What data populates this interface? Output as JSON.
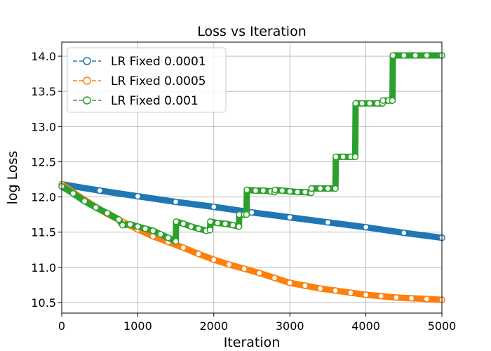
{
  "chart_data": {
    "type": "line",
    "title": "Loss vs Iteration",
    "xlabel": "Iteration",
    "ylabel": "log Loss",
    "xlim": [
      0,
      5000
    ],
    "ylim": [
      10.35,
      14.2
    ],
    "xticks": [
      0,
      1000,
      2000,
      3000,
      4000,
      5000
    ],
    "yticks": [
      10.5,
      11.0,
      11.5,
      12.0,
      12.5,
      13.0,
      13.5,
      14.0
    ],
    "xtick_labels": [
      "0",
      "1000",
      "2000",
      "3000",
      "4000",
      "5000"
    ],
    "ytick_labels": [
      "10.5",
      "11.0",
      "11.5",
      "12.0",
      "12.5",
      "13.0",
      "13.5",
      "14.0"
    ],
    "grid": true,
    "legend_position": "top-left",
    "series": [
      {
        "name": "LR Fixed 0.0001",
        "color": "#1f77b4",
        "linestyle": "dashed",
        "marker": "open-circle",
        "x": [
          0,
          500,
          1000,
          1500,
          2000,
          2500,
          3000,
          3500,
          4000,
          4500,
          5000
        ],
        "y": [
          12.18,
          12.09,
          12.01,
          11.93,
          11.86,
          11.78,
          11.71,
          11.64,
          11.57,
          11.49,
          11.42
        ]
      },
      {
        "name": "LR Fixed 0.0005",
        "color": "#ff7f0e",
        "linestyle": "dashed",
        "marker": "open-circle",
        "x": [
          0,
          200,
          400,
          600,
          800,
          1000,
          1200,
          1400,
          1600,
          1800,
          2000,
          2200,
          2400,
          2600,
          2800,
          3000,
          3200,
          3400,
          3600,
          3800,
          4000,
          4200,
          4400,
          4600,
          4800,
          5000
        ],
        "y": [
          12.18,
          12.03,
          11.89,
          11.76,
          11.65,
          11.54,
          11.44,
          11.36,
          11.28,
          11.19,
          11.11,
          11.04,
          10.98,
          10.92,
          10.85,
          10.78,
          10.74,
          10.7,
          10.67,
          10.64,
          10.61,
          10.59,
          10.57,
          10.56,
          10.55,
          10.54
        ]
      },
      {
        "name": "LR Fixed 0.001",
        "color": "#2ca02c",
        "linestyle": "dashed",
        "marker": "open-circle",
        "x": [
          0,
          150,
          300,
          450,
          600,
          750,
          800,
          900,
          1000,
          1100,
          1200,
          1300,
          1400,
          1500,
          1505,
          1600,
          1700,
          1800,
          1900,
          1950,
          1955,
          2050,
          2150,
          2250,
          2330,
          2335,
          2400,
          2430,
          2435,
          2550,
          2650,
          2750,
          2800,
          2805,
          2900,
          3000,
          3100,
          3200,
          3280,
          3285,
          3400,
          3500,
          3600,
          3605,
          3700,
          3800,
          3860,
          3865,
          3950,
          4050,
          4150,
          4220,
          4225,
          4300,
          4350,
          4355,
          4500,
          4650,
          4800,
          5000
        ],
        "y": [
          12.15,
          12.05,
          11.94,
          11.85,
          11.77,
          11.68,
          11.6,
          11.61,
          11.58,
          11.55,
          11.52,
          11.47,
          11.42,
          11.37,
          11.65,
          11.62,
          11.58,
          11.55,
          11.52,
          11.53,
          11.65,
          11.63,
          11.62,
          11.6,
          11.58,
          11.75,
          11.75,
          11.75,
          12.1,
          12.09,
          12.09,
          12.08,
          12.07,
          12.1,
          12.09,
          12.08,
          12.07,
          12.07,
          12.06,
          12.12,
          12.12,
          12.12,
          12.12,
          12.57,
          12.57,
          12.57,
          12.57,
          13.33,
          13.33,
          13.33,
          13.33,
          13.33,
          13.37,
          13.37,
          13.37,
          14.01,
          14.01,
          14.01,
          14.01,
          14.01
        ]
      }
    ]
  }
}
